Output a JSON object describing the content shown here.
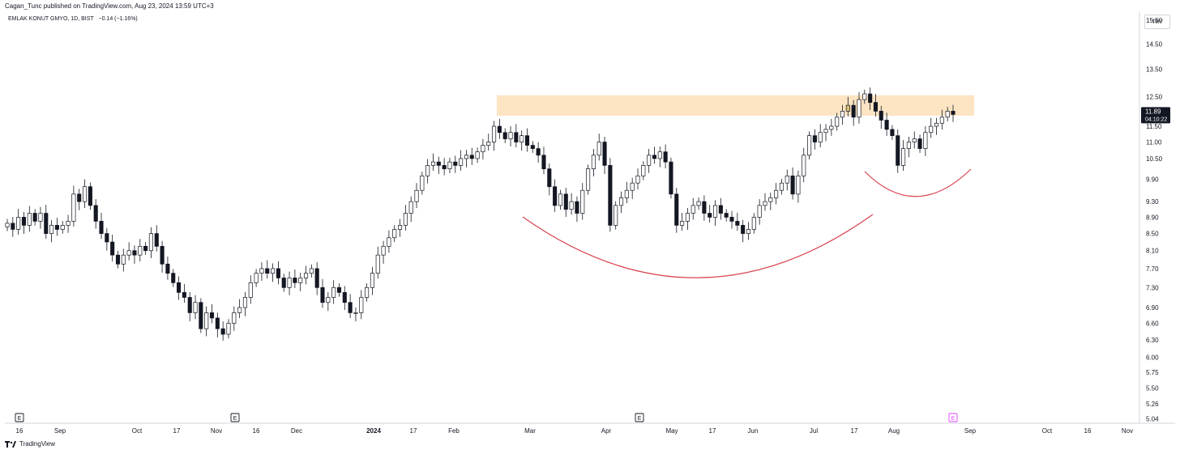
{
  "header": {
    "published": "Cagan_Tunc published on TradingView.com, Aug 23, 2024 13:59 UTC+3"
  },
  "symbol": {
    "name": "EMLAK KONUT GMYO, 1D, BIST",
    "change": "−0.14 (−1.16%)"
  },
  "currency": "TRY",
  "last_price": {
    "value": "11.89",
    "countdown": "04:10:22"
  },
  "footer": {
    "brand": "TradingView"
  },
  "earnings_marker": "E",
  "colors": {
    "up": "#ffffff",
    "down": "#131722",
    "wick": "#131722",
    "resistance_zone": "#fde4c3",
    "arc": "#d9434f",
    "highlight_candle": "#d9c27a",
    "earnings_upcoming": "#e040fb"
  },
  "chart_data": {
    "type": "candlestick",
    "y_axis_ticks": [
      "15.50",
      "14.50",
      "13.50",
      "12.50",
      "11.50",
      "11.00",
      "10.50",
      "9.90",
      "9.30",
      "8.90",
      "8.50",
      "8.10",
      "7.70",
      "7.30",
      "6.90",
      "6.60",
      "6.30",
      "6.00",
      "5.75",
      "5.50",
      "5.26",
      "5.04"
    ],
    "x_axis_ticks": [
      "16",
      "Sep",
      "Oct",
      "17",
      "Nov",
      "16",
      "Dec",
      "2024",
      "17",
      "Feb",
      "Mar",
      "Apr",
      "May",
      "17",
      "Jun",
      "Jul",
      "17",
      "Aug",
      "Sep",
      "Oct",
      "16",
      "Nov"
    ],
    "y_scale": "log",
    "resistance_zone": [
      11.85,
      12.55
    ],
    "closes": [
      8.75,
      8.6,
      8.9,
      8.7,
      9.0,
      8.8,
      9.0,
      8.5,
      8.7,
      8.6,
      8.7,
      8.8,
      9.5,
      9.3,
      9.7,
      9.2,
      8.8,
      8.5,
      8.3,
      8.0,
      7.8,
      8.0,
      8.1,
      8.0,
      8.2,
      8.1,
      8.5,
      8.2,
      7.8,
      7.6,
      7.4,
      7.2,
      7.1,
      6.8,
      7.0,
      6.5,
      6.8,
      6.7,
      6.5,
      6.4,
      6.6,
      6.8,
      6.9,
      7.1,
      7.4,
      7.6,
      7.7,
      7.6,
      7.7,
      7.5,
      7.3,
      7.5,
      7.4,
      7.5,
      7.6,
      7.7,
      7.3,
      7.0,
      7.1,
      7.3,
      7.2,
      7.0,
      6.8,
      6.8,
      7.1,
      7.3,
      7.6,
      8.0,
      8.2,
      8.4,
      8.6,
      8.7,
      9.0,
      9.3,
      9.6,
      10.0,
      10.3,
      10.4,
      10.3,
      10.2,
      10.4,
      10.3,
      10.5,
      10.6,
      10.5,
      10.7,
      10.9,
      11.0,
      11.5,
      11.3,
      11.1,
      11.3,
      11.0,
      11.2,
      10.9,
      10.8,
      10.6,
      10.2,
      9.7,
      9.2,
      9.5,
      9.1,
      9.3,
      9.0,
      9.6,
      10.2,
      10.6,
      11.0,
      10.3,
      8.7,
      9.2,
      9.4,
      9.6,
      9.8,
      10.0,
      10.3,
      10.6,
      10.5,
      10.7,
      10.4,
      9.5,
      8.7,
      8.8,
      9.0,
      9.2,
      9.3,
      9.0,
      8.9,
      9.2,
      9.0,
      8.9,
      8.8,
      8.7,
      8.5,
      8.6,
      8.9,
      9.2,
      9.3,
      9.4,
      9.6,
      9.8,
      10.0,
      9.5,
      10.0,
      10.6,
      11.2,
      11.0,
      11.3,
      11.4,
      11.5,
      11.8,
      12.0,
      12.2,
      11.8,
      12.4,
      12.6,
      12.3,
      12.0,
      11.7,
      11.4,
      11.2,
      10.3,
      10.8,
      11.0,
      11.1,
      10.8,
      11.3,
      11.5,
      11.6,
      11.8,
      12.0,
      11.89
    ]
  }
}
